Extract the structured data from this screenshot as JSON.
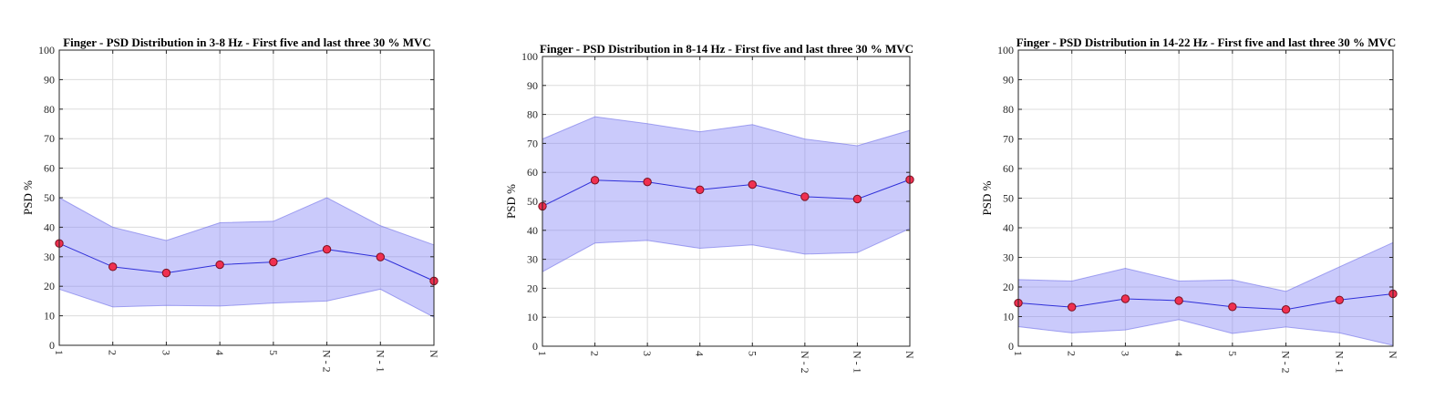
{
  "colors": {
    "band_fill": "#8080f5",
    "band_edge": "#7070e8",
    "line": "#2f2fd8",
    "marker_fill": "#f03050",
    "marker_edge": "#7a1020"
  },
  "chart_data": [
    {
      "type": "line",
      "title": "Finger - PSD Distribution in 3-8 Hz  - First five and last three 30 % MVC",
      "ylabel": "PSD %",
      "categories": [
        "1",
        "2",
        "3",
        "4",
        "5",
        "N - 2",
        "N - 1",
        "N"
      ],
      "ylim": [
        0,
        100
      ],
      "yticks": [
        0,
        10,
        20,
        30,
        40,
        50,
        60,
        70,
        80,
        90,
        100
      ],
      "grid": true,
      "mean": [
        34.5,
        26.6,
        24.5,
        27.3,
        28.2,
        32.5,
        29.9,
        21.8
      ],
      "upper": [
        50,
        40,
        35.5,
        41.5,
        42,
        50,
        40.5,
        34
      ],
      "lower": [
        19,
        13,
        13.5,
        13.3,
        14.3,
        15,
        19,
        9.5
      ]
    },
    {
      "type": "line",
      "title": "Finger - PSD Distribution in 8-14 Hz  - First five and last three 30 % MVC",
      "ylabel": "PSD %",
      "categories": [
        "1",
        "2",
        "3",
        "4",
        "5",
        "N - 2",
        "N - 1",
        "N"
      ],
      "ylim": [
        0,
        100
      ],
      "yticks": [
        0,
        10,
        20,
        30,
        40,
        50,
        60,
        70,
        80,
        90,
        100
      ],
      "grid": true,
      "mean": [
        48.3,
        57.3,
        56.7,
        54.0,
        55.8,
        51.6,
        50.8,
        57.5
      ],
      "upper": [
        71.5,
        79.2,
        76.8,
        74,
        76.5,
        71.5,
        69.2,
        74.5
      ],
      "lower": [
        25.7,
        35.6,
        36.5,
        33.8,
        35,
        31.8,
        32.3,
        40.6
      ]
    },
    {
      "type": "line",
      "title": "Finger - PSD Distribution in 14-22 Hz  - First five and last three 30 % MVC",
      "ylabel": "PSD %",
      "categories": [
        "1",
        "2",
        "3",
        "4",
        "5",
        "N - 2",
        "N - 1",
        "N"
      ],
      "ylim": [
        0,
        100
      ],
      "yticks": [
        0,
        10,
        20,
        30,
        40,
        50,
        60,
        70,
        80,
        90,
        100
      ],
      "grid": true,
      "mean": [
        14.6,
        13.2,
        16.0,
        15.4,
        13.3,
        12.4,
        15.6,
        17.7
      ],
      "upper": [
        22.5,
        22,
        26.3,
        22,
        22.4,
        18.5,
        26.8,
        35
      ],
      "lower": [
        6.6,
        4.5,
        5.5,
        9,
        4.3,
        6.5,
        4.5,
        0.3
      ]
    }
  ]
}
